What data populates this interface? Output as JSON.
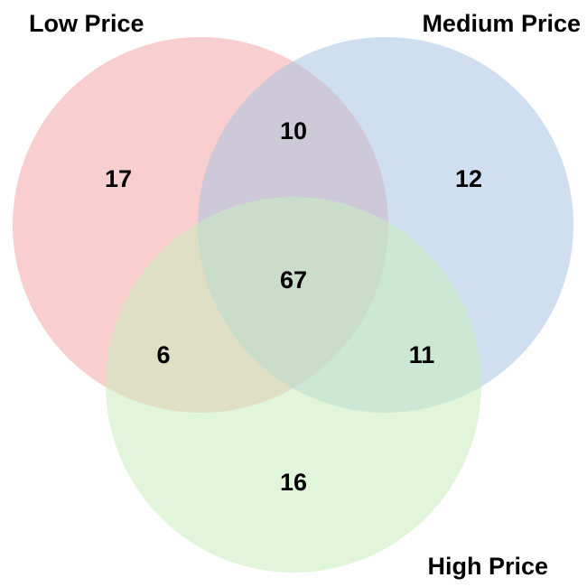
{
  "sets": [
    {
      "id": "low",
      "label": "Low Price",
      "color": "#f4a6a6"
    },
    {
      "id": "medium",
      "label": "Medium Price",
      "color": "#a9c4e2"
    },
    {
      "id": "high",
      "label": "High Price",
      "color": "#c8edbd"
    }
  ],
  "regions": {
    "low_only": "17",
    "medium_only": "12",
    "high_only": "16",
    "low_medium": "10",
    "low_high": "6",
    "medium_high": "11",
    "all": "67"
  }
}
